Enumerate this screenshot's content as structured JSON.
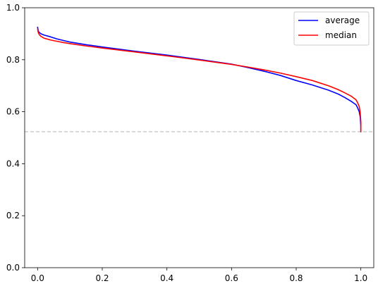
{
  "chart_data": {
    "type": "line",
    "title": "",
    "xlabel": "",
    "ylabel": "",
    "xlim": [
      -0.04,
      1.04
    ],
    "ylim": [
      0.0,
      1.0
    ],
    "x_ticks": [
      0.0,
      0.2,
      0.4,
      0.6,
      0.8,
      1.0
    ],
    "x_tick_labels": [
      "0.0",
      "0.2",
      "0.4",
      "0.6",
      "0.8",
      "1.0"
    ],
    "y_ticks": [
      0.0,
      0.2,
      0.4,
      0.6,
      0.8,
      1.0
    ],
    "y_tick_labels": [
      "0.0",
      "0.2",
      "0.4",
      "0.6",
      "0.8",
      "1.0"
    ],
    "grid": false,
    "legend_position": "top-right",
    "reference_line": {
      "y": 0.523,
      "color": "#c0c0c0",
      "style": "dashed"
    },
    "series": [
      {
        "name": "average",
        "color": "#0000ff",
        "points": [
          [
            0.0,
            0.925
          ],
          [
            0.002,
            0.91
          ],
          [
            0.005,
            0.905
          ],
          [
            0.01,
            0.9
          ],
          [
            0.02,
            0.895
          ],
          [
            0.04,
            0.888
          ],
          [
            0.06,
            0.88
          ],
          [
            0.08,
            0.874
          ],
          [
            0.1,
            0.868
          ],
          [
            0.15,
            0.858
          ],
          [
            0.2,
            0.849
          ],
          [
            0.3,
            0.833
          ],
          [
            0.4,
            0.818
          ],
          [
            0.5,
            0.801
          ],
          [
            0.6,
            0.783
          ],
          [
            0.65,
            0.77
          ],
          [
            0.7,
            0.756
          ],
          [
            0.75,
            0.74
          ],
          [
            0.8,
            0.72
          ],
          [
            0.85,
            0.703
          ],
          [
            0.9,
            0.683
          ],
          [
            0.93,
            0.668
          ],
          [
            0.95,
            0.655
          ],
          [
            0.97,
            0.64
          ],
          [
            0.985,
            0.627
          ],
          [
            0.99,
            0.615
          ],
          [
            0.995,
            0.6
          ],
          [
            0.998,
            0.58
          ],
          [
            1.0,
            0.545
          ],
          [
            1.0,
            0.523
          ]
        ]
      },
      {
        "name": "median",
        "color": "#ff0000",
        "points": [
          [
            0.0,
            0.918
          ],
          [
            0.002,
            0.905
          ],
          [
            0.005,
            0.897
          ],
          [
            0.01,
            0.89
          ],
          [
            0.02,
            0.883
          ],
          [
            0.04,
            0.876
          ],
          [
            0.06,
            0.871
          ],
          [
            0.08,
            0.866
          ],
          [
            0.1,
            0.862
          ],
          [
            0.15,
            0.853
          ],
          [
            0.2,
            0.845
          ],
          [
            0.3,
            0.83
          ],
          [
            0.4,
            0.815
          ],
          [
            0.5,
            0.799
          ],
          [
            0.6,
            0.782
          ],
          [
            0.65,
            0.772
          ],
          [
            0.7,
            0.761
          ],
          [
            0.75,
            0.749
          ],
          [
            0.8,
            0.735
          ],
          [
            0.85,
            0.72
          ],
          [
            0.9,
            0.7
          ],
          [
            0.93,
            0.685
          ],
          [
            0.95,
            0.673
          ],
          [
            0.97,
            0.66
          ],
          [
            0.985,
            0.646
          ],
          [
            0.99,
            0.635
          ],
          [
            0.995,
            0.62
          ],
          [
            0.998,
            0.598
          ],
          [
            1.0,
            0.56
          ],
          [
            1.0,
            0.523
          ]
        ]
      }
    ]
  }
}
